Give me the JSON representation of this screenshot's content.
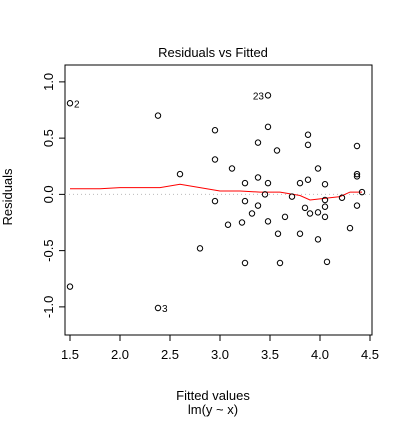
{
  "chart_data": {
    "type": "scatter",
    "title": "Residuals vs Fitted",
    "xlabel": "Fitted values",
    "xlabel_sub": "lm(y ~ x)",
    "ylabel": "Residuals",
    "xlim": [
      1.45,
      4.52
    ],
    "ylim": [
      -1.25,
      1.15
    ],
    "xticks": [
      1.5,
      2.0,
      2.5,
      3.0,
      3.5,
      4.0,
      4.5
    ],
    "xtick_labels": [
      "1.5",
      "2.0",
      "2.5",
      "3.0",
      "3.5",
      "4.0",
      "4.5"
    ],
    "yticks": [
      -1.0,
      -0.5,
      0.0,
      0.5,
      1.0
    ],
    "ytick_labels": [
      "-1.0",
      "-0.5",
      "0.0",
      "0.5",
      "1.0"
    ],
    "points": [
      {
        "x": 1.5,
        "y": 0.81,
        "label": "2"
      },
      {
        "x": 1.5,
        "y": -0.82
      },
      {
        "x": 2.38,
        "y": 0.7
      },
      {
        "x": 2.38,
        "y": -1.01,
        "label": "3"
      },
      {
        "x": 2.6,
        "y": 0.18
      },
      {
        "x": 2.8,
        "y": -0.48
      },
      {
        "x": 2.95,
        "y": 0.57
      },
      {
        "x": 2.95,
        "y": 0.31
      },
      {
        "x": 2.95,
        "y": -0.06
      },
      {
        "x": 3.08,
        "y": -0.27
      },
      {
        "x": 3.12,
        "y": 0.23
      },
      {
        "x": 3.22,
        "y": -0.25
      },
      {
        "x": 3.25,
        "y": 0.1
      },
      {
        "x": 3.25,
        "y": -0.06
      },
      {
        "x": 3.25,
        "y": -0.61
      },
      {
        "x": 3.32,
        "y": -0.17
      },
      {
        "x": 3.38,
        "y": 0.46
      },
      {
        "x": 3.38,
        "y": 0.15
      },
      {
        "x": 3.38,
        "y": -0.1
      },
      {
        "x": 3.45,
        "y": 0.0
      },
      {
        "x": 3.48,
        "y": 0.88,
        "label": "23"
      },
      {
        "x": 3.48,
        "y": 0.6
      },
      {
        "x": 3.48,
        "y": 0.1
      },
      {
        "x": 3.48,
        "y": -0.24
      },
      {
        "x": 3.57,
        "y": 0.39
      },
      {
        "x": 3.58,
        "y": -0.35
      },
      {
        "x": 3.6,
        "y": -0.61
      },
      {
        "x": 3.65,
        "y": -0.2
      },
      {
        "x": 3.72,
        "y": -0.02
      },
      {
        "x": 3.8,
        "y": 0.1
      },
      {
        "x": 3.8,
        "y": -0.35
      },
      {
        "x": 3.85,
        "y": -0.12
      },
      {
        "x": 3.88,
        "y": 0.53
      },
      {
        "x": 3.88,
        "y": 0.44
      },
      {
        "x": 3.88,
        "y": 0.13
      },
      {
        "x": 3.9,
        "y": -0.17
      },
      {
        "x": 3.98,
        "y": 0.23
      },
      {
        "x": 3.98,
        "y": -0.16
      },
      {
        "x": 3.98,
        "y": -0.4
      },
      {
        "x": 4.05,
        "y": 0.09
      },
      {
        "x": 4.05,
        "y": -0.05
      },
      {
        "x": 4.05,
        "y": -0.11
      },
      {
        "x": 4.05,
        "y": -0.2
      },
      {
        "x": 4.07,
        "y": -0.6
      },
      {
        "x": 4.22,
        "y": -0.03
      },
      {
        "x": 4.3,
        "y": -0.3
      },
      {
        "x": 4.37,
        "y": 0.43
      },
      {
        "x": 4.37,
        "y": 0.18
      },
      {
        "x": 4.37,
        "y": 0.16
      },
      {
        "x": 4.37,
        "y": -0.1
      },
      {
        "x": 4.42,
        "y": 0.02
      }
    ],
    "smoother": {
      "color": "#ff0000",
      "x": [
        1.5,
        1.8,
        2.0,
        2.2,
        2.4,
        2.6,
        2.8,
        3.0,
        3.2,
        3.4,
        3.6,
        3.8,
        3.9,
        4.0,
        4.1,
        4.2,
        4.3,
        4.42
      ],
      "y": [
        0.05,
        0.05,
        0.06,
        0.06,
        0.06,
        0.09,
        0.06,
        0.03,
        0.03,
        0.02,
        0.02,
        -0.01,
        -0.05,
        -0.04,
        -0.03,
        -0.02,
        0.02,
        0.02
      ]
    },
    "reference_line": {
      "y": 0,
      "style": "dotted",
      "color": "#bbbbbb"
    },
    "grid": false
  }
}
